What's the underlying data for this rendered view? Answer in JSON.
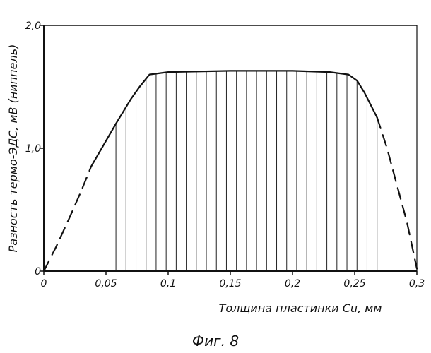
{
  "chart_data": {
    "type": "line",
    "title": "",
    "caption": "Фиг. 8",
    "xlabel": "Толщина пластинки Cu, мм",
    "ylabel": "Разность термо-ЭДС, мВ (ниппель)",
    "xlim": [
      0,
      0.3
    ],
    "ylim": [
      0,
      2.0
    ],
    "x_ticks": [
      0,
      0.05,
      0.1,
      0.15,
      0.2,
      0.25,
      0.3
    ],
    "x_tick_labels": [
      "0",
      "0,05",
      "0,1",
      "0,15",
      "0,2",
      "0,25",
      "0,3"
    ],
    "y_ticks": [
      0,
      1.0,
      2.0
    ],
    "y_tick_labels": [
      "0",
      "1,0",
      "2,0"
    ],
    "grid": false,
    "hatched_region": [
      0.058,
      0.268
    ],
    "series": [
      {
        "style": "solid",
        "points": [
          [
            0.058,
            1.2
          ],
          [
            0.07,
            1.4
          ],
          [
            0.077,
            1.5
          ],
          [
            0.085,
            1.6
          ],
          [
            0.1,
            1.62
          ],
          [
            0.15,
            1.63
          ],
          [
            0.2,
            1.63
          ],
          [
            0.23,
            1.62
          ],
          [
            0.245,
            1.6
          ],
          [
            0.252,
            1.55
          ],
          [
            0.258,
            1.45
          ],
          [
            0.268,
            1.25
          ]
        ]
      },
      {
        "style": "solid",
        "points": [
          [
            0.038,
            0.85
          ],
          [
            0.058,
            1.2
          ]
        ]
      },
      {
        "style": "dashed",
        "points": [
          [
            0,
            0
          ],
          [
            0.01,
            0.2
          ],
          [
            0.02,
            0.42
          ],
          [
            0.03,
            0.65
          ],
          [
            0.038,
            0.85
          ]
        ]
      },
      {
        "style": "dashed",
        "points": [
          [
            0.268,
            1.25
          ],
          [
            0.276,
            1.0
          ],
          [
            0.284,
            0.7
          ],
          [
            0.292,
            0.4
          ],
          [
            0.3,
            0.02
          ]
        ]
      }
    ]
  }
}
